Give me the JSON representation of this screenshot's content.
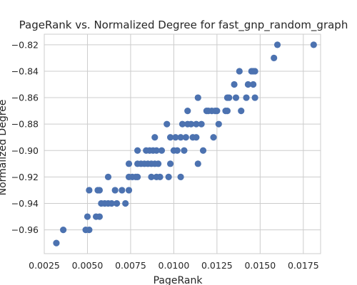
{
  "chart_data": {
    "type": "scatter",
    "title": "PageRank vs. Normalized Degree for fast_gnp_random_graph",
    "xlabel": "PageRank",
    "ylabel": "Normalized Degree",
    "xlim": [
      0.0025,
      0.0185
    ],
    "ylim": [
      -0.978,
      -0.812
    ],
    "xticks": [
      0.0025,
      0.005,
      0.0075,
      0.01,
      0.0125,
      0.015,
      0.0175
    ],
    "xtick_labels": [
      "0.0025",
      "0.0050",
      "0.0075",
      "0.0100",
      "0.0125",
      "0.0150",
      "0.0175"
    ],
    "yticks": [
      -0.96,
      -0.94,
      -0.92,
      -0.9,
      -0.88,
      -0.86,
      -0.84,
      -0.82
    ],
    "ytick_labels": [
      "−0.96",
      "−0.94",
      "−0.92",
      "−0.90",
      "−0.88",
      "−0.86",
      "−0.84",
      "−0.82"
    ],
    "grid": true,
    "marker_color": "#4c72b0",
    "points": [
      [
        0.0032,
        -0.97
      ],
      [
        0.0036,
        -0.96
      ],
      [
        0.0049,
        -0.96
      ],
      [
        0.0051,
        -0.96
      ],
      [
        0.005,
        -0.95
      ],
      [
        0.0055,
        -0.95
      ],
      [
        0.0057,
        -0.95
      ],
      [
        0.0051,
        -0.93
      ],
      [
        0.0056,
        -0.93
      ],
      [
        0.0057,
        -0.93
      ],
      [
        0.0058,
        -0.94
      ],
      [
        0.006,
        -0.94
      ],
      [
        0.0062,
        -0.94
      ],
      [
        0.0064,
        -0.94
      ],
      [
        0.0067,
        -0.94
      ],
      [
        0.0072,
        -0.94
      ],
      [
        0.0062,
        -0.92
      ],
      [
        0.0066,
        -0.93
      ],
      [
        0.007,
        -0.93
      ],
      [
        0.0074,
        -0.93
      ],
      [
        0.0074,
        -0.92
      ],
      [
        0.0076,
        -0.92
      ],
      [
        0.0078,
        -0.92
      ],
      [
        0.0079,
        -0.92
      ],
      [
        0.0074,
        -0.91
      ],
      [
        0.0079,
        -0.91
      ],
      [
        0.0081,
        -0.91
      ],
      [
        0.0083,
        -0.91
      ],
      [
        0.0085,
        -0.91
      ],
      [
        0.0087,
        -0.91
      ],
      [
        0.0089,
        -0.91
      ],
      [
        0.0091,
        -0.91
      ],
      [
        0.0079,
        -0.9
      ],
      [
        0.0084,
        -0.9
      ],
      [
        0.0086,
        -0.9
      ],
      [
        0.0088,
        -0.9
      ],
      [
        0.009,
        -0.9
      ],
      [
        0.0093,
        -0.9
      ],
      [
        0.0089,
        -0.89
      ],
      [
        0.0087,
        -0.92
      ],
      [
        0.009,
        -0.92
      ],
      [
        0.0092,
        -0.92
      ],
      [
        0.0096,
        -0.88
      ],
      [
        0.0097,
        -0.92
      ],
      [
        0.0098,
        -0.91
      ],
      [
        0.0098,
        -0.89
      ],
      [
        0.01,
        -0.9
      ],
      [
        0.0101,
        -0.89
      ],
      [
        0.0102,
        -0.9
      ],
      [
        0.0104,
        -0.89
      ],
      [
        0.0104,
        -0.92
      ],
      [
        0.0105,
        -0.88
      ],
      [
        0.0106,
        -0.9
      ],
      [
        0.0107,
        -0.89
      ],
      [
        0.0108,
        -0.88
      ],
      [
        0.0108,
        -0.87
      ],
      [
        0.011,
        -0.88
      ],
      [
        0.0111,
        -0.89
      ],
      [
        0.0113,
        -0.89
      ],
      [
        0.0113,
        -0.88
      ],
      [
        0.0114,
        -0.86
      ],
      [
        0.0114,
        -0.91
      ],
      [
        0.0116,
        -0.88
      ],
      [
        0.0117,
        -0.9
      ],
      [
        0.0119,
        -0.87
      ],
      [
        0.012,
        -0.87
      ],
      [
        0.0122,
        -0.87
      ],
      [
        0.0123,
        -0.89
      ],
      [
        0.0124,
        -0.87
      ],
      [
        0.0125,
        -0.87
      ],
      [
        0.0126,
        -0.88
      ],
      [
        0.013,
        -0.87
      ],
      [
        0.0131,
        -0.87
      ],
      [
        0.0131,
        -0.86
      ],
      [
        0.0132,
        -0.86
      ],
      [
        0.0135,
        -0.85
      ],
      [
        0.0136,
        -0.86
      ],
      [
        0.0138,
        -0.84
      ],
      [
        0.0139,
        -0.87
      ],
      [
        0.0142,
        -0.86
      ],
      [
        0.0143,
        -0.85
      ],
      [
        0.0145,
        -0.84
      ],
      [
        0.0146,
        -0.84
      ],
      [
        0.0146,
        -0.85
      ],
      [
        0.0147,
        -0.86
      ],
      [
        0.0147,
        -0.84
      ],
      [
        0.0158,
        -0.83
      ],
      [
        0.016,
        -0.82
      ],
      [
        0.0181,
        -0.82
      ]
    ]
  }
}
